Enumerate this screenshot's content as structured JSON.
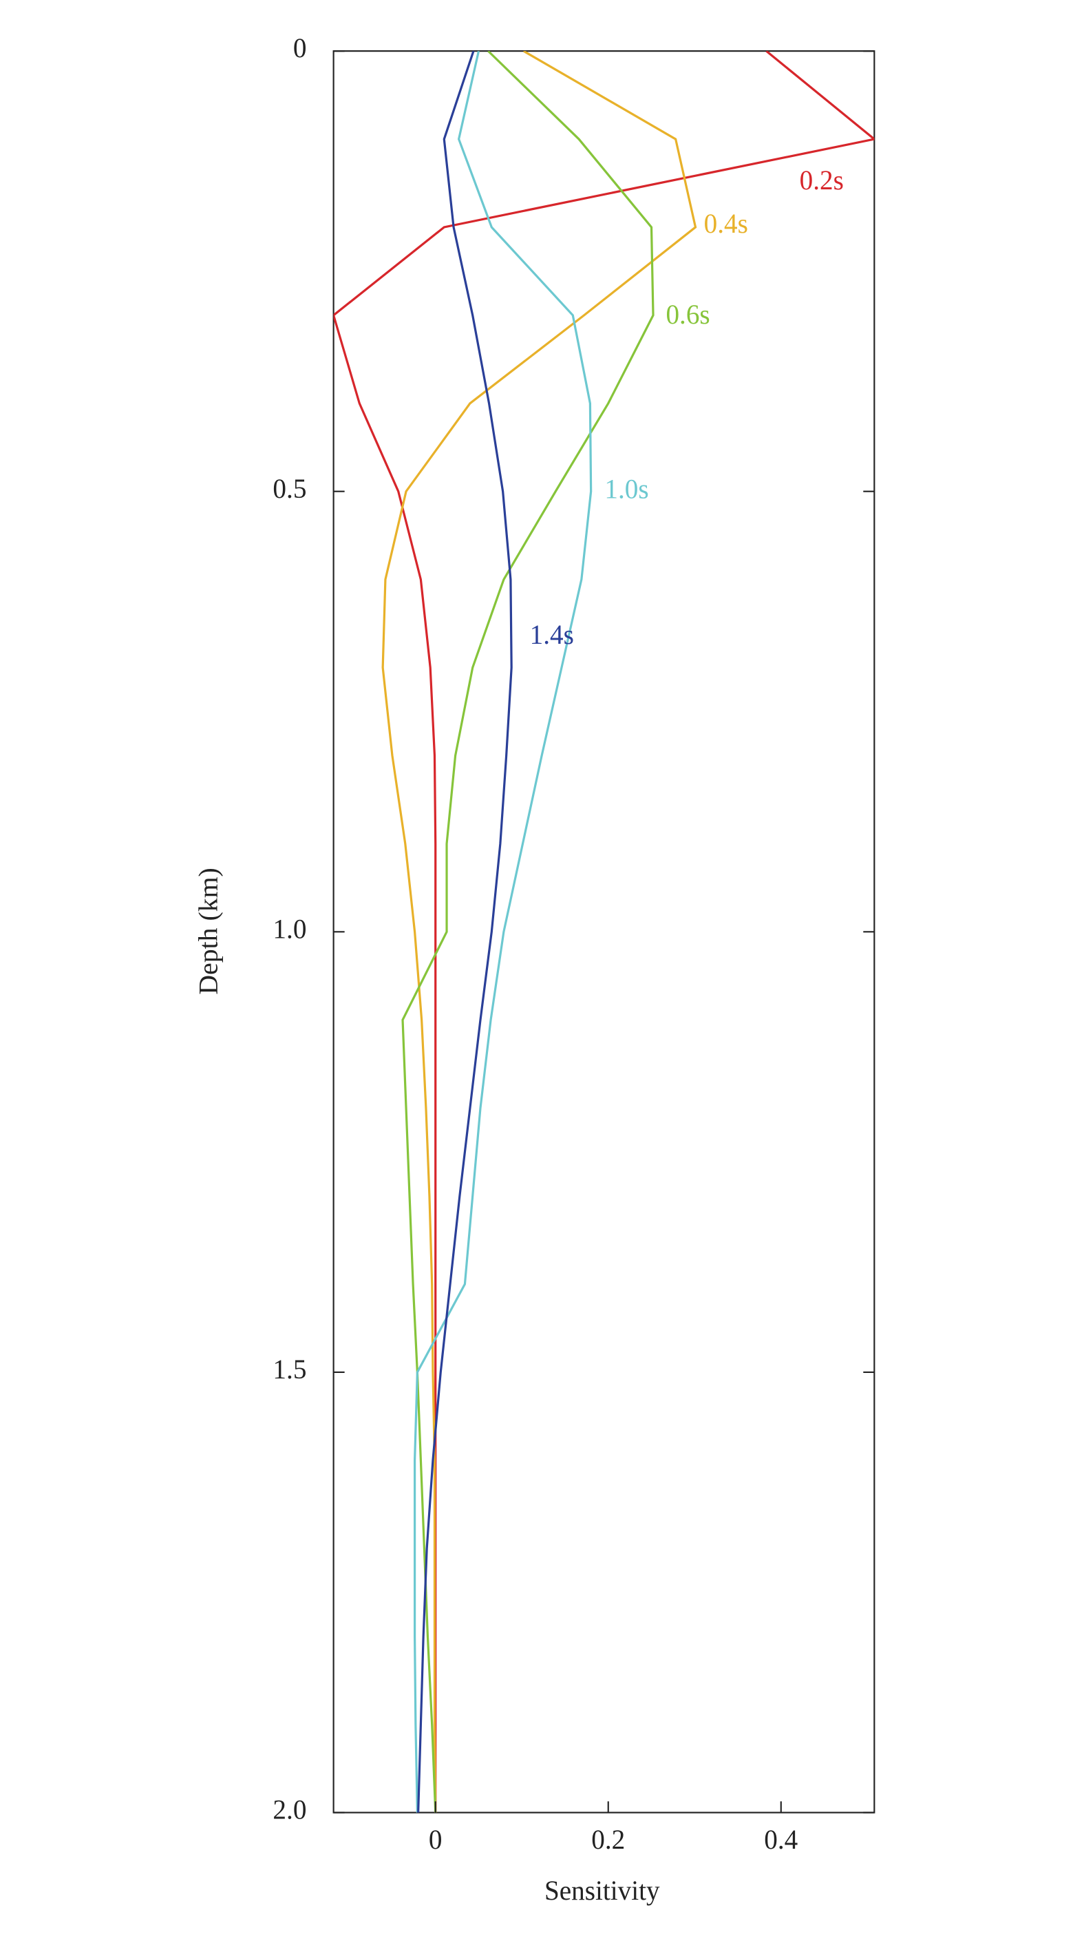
{
  "chart_data": {
    "type": "line",
    "xlabel": "Sensitivity",
    "ylabel": "Depth (km)",
    "xlim": [
      -0.118,
      0.508
    ],
    "ylim": [
      0,
      2.0
    ],
    "y_inverted": true,
    "xticks": [
      0,
      0.2,
      0.4
    ],
    "yticks": [
      0,
      0.5,
      {
        "value": 1,
        "label": "1.0"
      },
      1.5,
      {
        "value": 2,
        "label": "2.0"
      }
    ],
    "depths": [
      0,
      0.1,
      0.2,
      0.3,
      0.4,
      0.5,
      0.6,
      0.7,
      0.8,
      0.9,
      1.0,
      1.1,
      1.2,
      1.3,
      1.4,
      1.5,
      1.6,
      1.7,
      1.8,
      1.9,
      2.0
    ],
    "series": [
      {
        "name": "0.2s",
        "color": "#d7262b",
        "values": [
          0.383,
          0.508,
          0.01,
          -0.118,
          -0.088,
          -0.043,
          -0.017,
          -0.006,
          -0.001,
          0,
          0,
          0,
          0,
          0,
          0,
          0,
          0,
          0,
          0,
          0,
          0
        ]
      },
      {
        "name": "0.4s",
        "color": "#e8b12a",
        "values": [
          0.102,
          0.278,
          0.301,
          0.172,
          0.04,
          -0.034,
          -0.058,
          -0.061,
          -0.05,
          -0.035,
          -0.024,
          -0.016,
          -0.011,
          -0.007,
          -0.004,
          -0.003,
          -0.001,
          -0.001,
          -0.001,
          -0.001,
          0
        ]
      },
      {
        "name": "0.6s",
        "color": "#86c43a",
        "values": [
          0.061,
          0.166,
          0.25,
          0.252,
          0.2,
          0.139,
          0.079,
          0.043,
          0.023,
          0.013,
          0.013,
          -0.038,
          -0.034,
          -0.03,
          -0.026,
          -0.021,
          -0.017,
          -0.013,
          -0.009,
          -0.004,
          0
        ]
      },
      {
        "name": "1.0s",
        "color": "#6cc8d0",
        "values": [
          0.05,
          0.027,
          0.065,
          0.159,
          0.179,
          0.18,
          0.169,
          0.146,
          0.123,
          0.101,
          0.079,
          0.064,
          0.052,
          0.043,
          0.034,
          -0.021,
          -0.024,
          -0.024,
          -0.024,
          -0.023,
          -0.021
        ]
      },
      {
        "name": "1.4s",
        "color": "#2a3f98",
        "values": [
          0.044,
          0.01,
          0.021,
          0.043,
          0.062,
          0.078,
          0.087,
          0.088,
          0.082,
          0.075,
          0.065,
          0.052,
          0.04,
          0.028,
          0.017,
          0.006,
          -0.003,
          -0.01,
          -0.014,
          -0.017,
          -0.02
        ]
      }
    ]
  }
}
